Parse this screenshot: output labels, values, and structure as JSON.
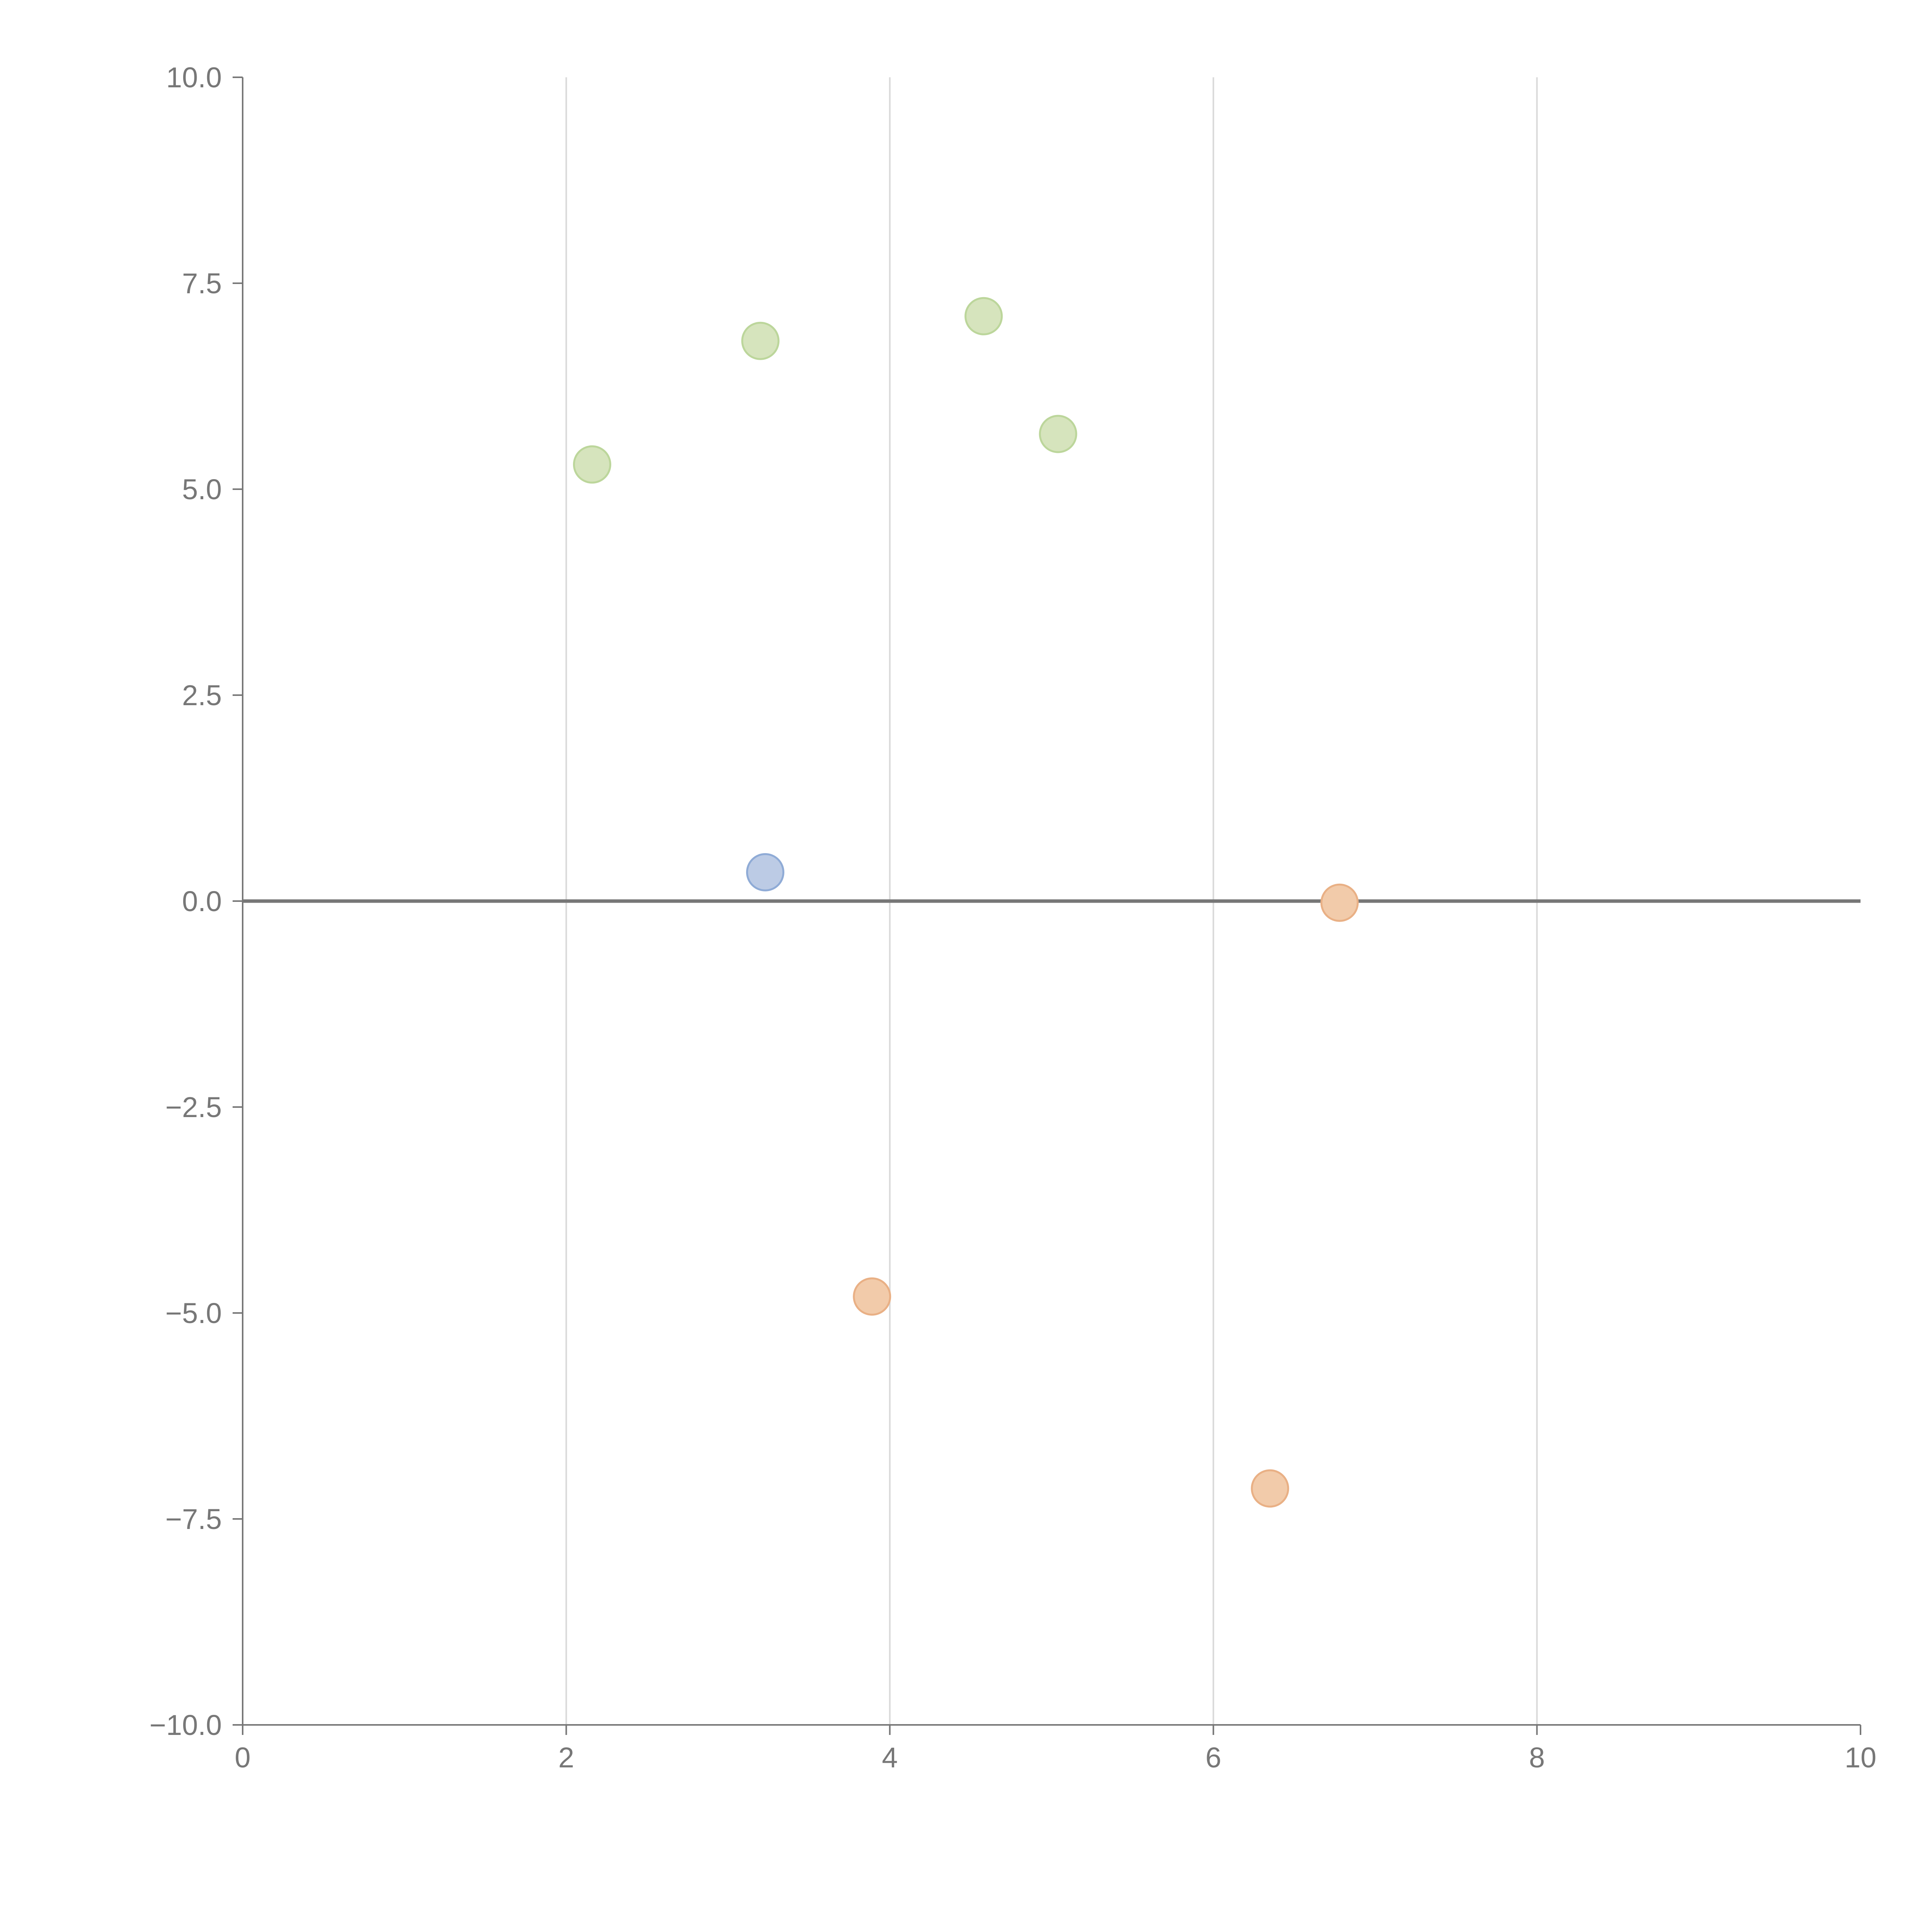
{
  "chart_data": {
    "type": "scatter",
    "title": "",
    "xlabel": "",
    "ylabel": "",
    "xlim": [
      0,
      10
    ],
    "ylim": [
      -10,
      10
    ],
    "x_ticks": [
      0,
      2,
      4,
      6,
      8,
      10
    ],
    "x_tick_labels": [
      "0",
      "2",
      "4",
      "6",
      "8",
      "10"
    ],
    "y_ticks": [
      10,
      7.5,
      5,
      2.5,
      0,
      -2.5,
      -5,
      -7.5,
      -10
    ],
    "y_tick_labels": [
      "10.0",
      "7.5",
      "5.0",
      "2.5",
      "0.0",
      "−2.5",
      "−5.0",
      "−7.5",
      "−10.0"
    ],
    "vertical_grid": true,
    "horizontal_grid": false,
    "reference_line_y": 0,
    "series": [
      {
        "name": "green",
        "fill": "#d6e4bd",
        "stroke": "#bcd69b",
        "points": [
          {
            "x": 2.16,
            "y": 5.3
          },
          {
            "x": 3.2,
            "y": 6.8
          },
          {
            "x": 4.58,
            "y": 7.1
          },
          {
            "x": 5.04,
            "y": 5.67
          }
        ]
      },
      {
        "name": "blue",
        "fill": "#bccbe5",
        "stroke": "#8fabd6",
        "points": [
          {
            "x": 3.23,
            "y": 0.35
          }
        ]
      },
      {
        "name": "orange",
        "fill": "#f2cbaa",
        "stroke": "#e9b085",
        "points": [
          {
            "x": 6.78,
            "y": -0.02
          },
          {
            "x": 3.89,
            "y": -4.8
          },
          {
            "x": 6.35,
            "y": -7.13
          }
        ]
      }
    ]
  }
}
